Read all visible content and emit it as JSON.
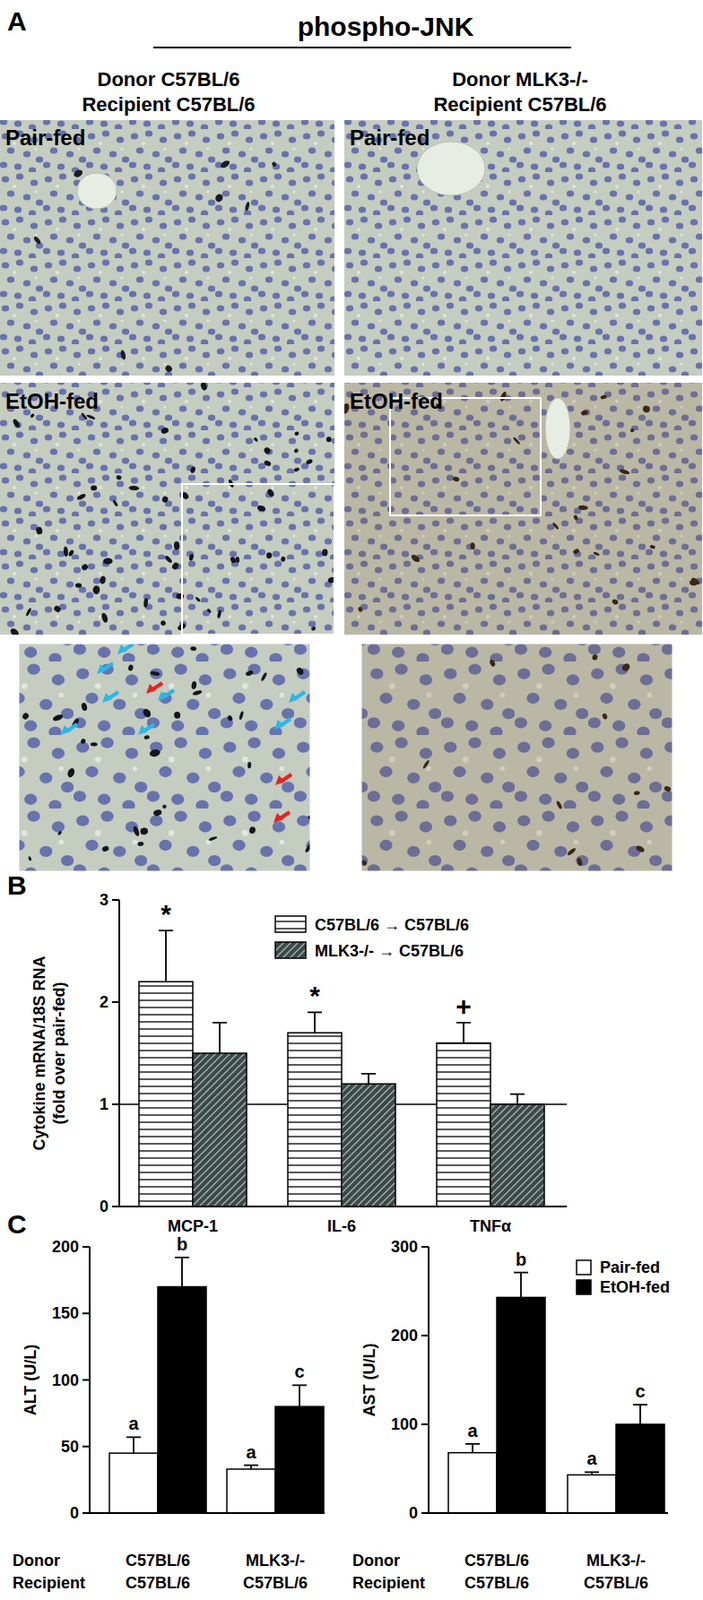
{
  "panel_a": {
    "label": "A",
    "title": "phospho-JNK",
    "columns": [
      {
        "donor": "Donor C57BL/6",
        "recipient": "Recipient C57BL/6"
      },
      {
        "donor": "Donor MLK3-/-",
        "recipient": "Recipient C57BL/6"
      }
    ],
    "rows": [
      "Pair-fed",
      "EtOH-fed"
    ]
  },
  "chart_data": [
    {
      "type": "bar",
      "panel_label": "B",
      "categories": [
        "MCP-1",
        "IL-6",
        "TNFα"
      ],
      "y_label": [
        "Cytokine mRNA/18S RNA",
        "(fold over pair-fed)"
      ],
      "ylim": [
        0,
        3
      ],
      "yticks": [
        0,
        1,
        2,
        3
      ],
      "reference_value": 1,
      "legend": "top-right",
      "series": [
        {
          "name": "C57BL/6 → C57BL/6",
          "color": "#ffffff",
          "values": [
            2.2,
            1.7,
            1.6
          ],
          "errors": [
            0.5,
            0.2,
            0.2
          ],
          "annotations": [
            "*",
            "*",
            "+"
          ]
        },
        {
          "name": "MLK3-/- → C57BL/6",
          "color": "#3b4a48",
          "values": [
            1.5,
            1.2,
            1.0
          ],
          "errors": [
            0.3,
            0.1,
            0.1
          ]
        }
      ]
    },
    {
      "type": "bar",
      "panel_label": "C",
      "y_label": "ALT (U/L)",
      "row_labels": [
        "Donor",
        "Recipient"
      ],
      "categories": [
        "C57BL/6",
        "MLK3-/-"
      ],
      "recipients": [
        "C57BL/6",
        "C57BL/6"
      ],
      "ylim": [
        0,
        200
      ],
      "yticks": [
        0,
        50,
        100,
        150,
        200
      ],
      "series": [
        {
          "color": "#ffffff",
          "values": [
            45,
            33
          ],
          "errors": [
            12,
            3
          ],
          "annotations": [
            "a",
            "a"
          ]
        },
        {
          "color": "#000000",
          "values": [
            170,
            80
          ],
          "errors": [
            22,
            16
          ],
          "annotations": [
            "b",
            "c"
          ]
        }
      ]
    },
    {
      "type": "bar",
      "y_label": "AST (U/L)",
      "row_labels": [
        "Donor",
        "Recipient"
      ],
      "categories": [
        "C57BL/6",
        "MLK3-/-"
      ],
      "recipients": [
        "C57BL/6",
        "C57BL/6"
      ],
      "ylim": [
        0,
        300
      ],
      "yticks": [
        0,
        100,
        200,
        300
      ],
      "legend": "top-right",
      "series": [
        {
          "name": "Pair-fed",
          "color": "#ffffff",
          "values": [
            68,
            43
          ],
          "errors": [
            10,
            3
          ],
          "annotations": [
            "a",
            "a"
          ]
        },
        {
          "name": "EtOH-fed",
          "color": "#000000",
          "values": [
            243,
            100
          ],
          "errors": [
            28,
            22
          ],
          "annotations": [
            "b",
            "c"
          ]
        }
      ]
    }
  ]
}
